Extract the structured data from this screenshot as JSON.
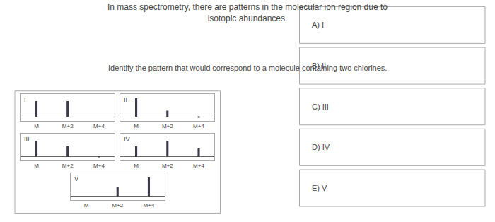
{
  "title": "In mass spectrometry, there are patterns in the molecular ion region due to\nisotopic abundances.",
  "subtitle": "Identify the pattern that would correspond to a molecule containing two chlorines.",
  "annotations": [
    "A) I",
    "B) II",
    "C) III",
    "D) IV",
    "E) V"
  ],
  "chart_data": [
    {
      "type": "bar",
      "title": "I",
      "categories": [
        "M",
        "M+2",
        "M+4"
      ],
      "values": [
        0.85,
        0.85,
        0.0
      ],
      "color": "#3a3a4a",
      "ylim": [
        -0.18,
        1.2
      ],
      "grid": false,
      "tick_labels": "x"
    },
    {
      "type": "bar",
      "title": "II",
      "categories": [
        "M",
        "M+2",
        "M+4"
      ],
      "values": [
        1.0,
        0.35,
        0.04
      ],
      "color": "#3a3a4a",
      "ylim": [
        -0.18,
        1.2
      ],
      "grid": false,
      "tick_labels": "x"
    },
    {
      "type": "bar",
      "title": "III",
      "categories": [
        "M",
        "M+2",
        "M+4"
      ],
      "values": [
        0.85,
        0.55,
        0.07
      ],
      "color": "#3a3a4a",
      "ylim": [
        -0.18,
        1.2
      ],
      "grid": false,
      "tick_labels": "x"
    },
    {
      "type": "bar",
      "title": "IV",
      "categories": [
        "M",
        "M+2",
        "M+4"
      ],
      "values": [
        0.55,
        0.85,
        0.45
      ],
      "color": "#3a3a4a",
      "ylim": [
        -0.18,
        1.2
      ],
      "grid": false,
      "tick_labels": "x"
    },
    {
      "type": "bar",
      "title": "V",
      "categories": [
        "M",
        "M+2",
        "M+4"
      ],
      "values": [
        0.0,
        0.5,
        1.0
      ],
      "color": "#3a3a4a",
      "ylim": [
        -0.18,
        1.2
      ],
      "grid": false,
      "tick_labels": "x"
    }
  ]
}
